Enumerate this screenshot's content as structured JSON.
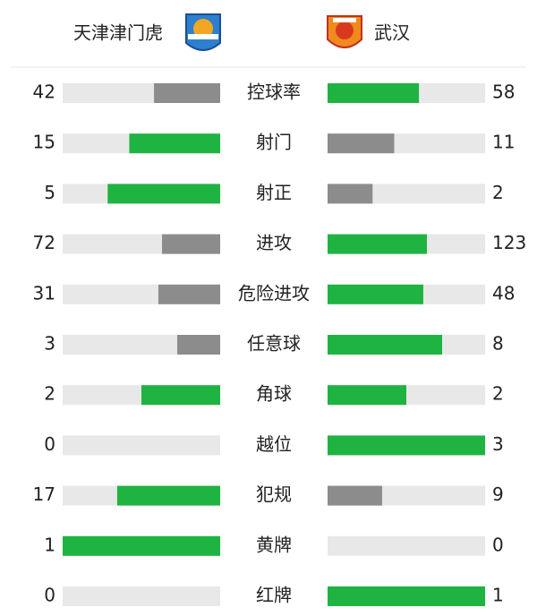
{
  "home": {
    "name": "天津津门虎"
  },
  "away": {
    "name": "武汉"
  },
  "colors": {
    "lead": "#1fb342",
    "trail": "#8c8c8c",
    "track": "#e8e8e8"
  },
  "stats": [
    {
      "label": "控球率",
      "home": 42,
      "away": 58
    },
    {
      "label": "射门",
      "home": 15,
      "away": 11
    },
    {
      "label": "射正",
      "home": 5,
      "away": 2
    },
    {
      "label": "进攻",
      "home": 72,
      "away": 123
    },
    {
      "label": "危险进攻",
      "home": 31,
      "away": 48
    },
    {
      "label": "任意球",
      "home": 3,
      "away": 8
    },
    {
      "label": "角球",
      "home": 2,
      "away": 2
    },
    {
      "label": "越位",
      "home": 0,
      "away": 3
    },
    {
      "label": "犯规",
      "home": 17,
      "away": 9
    },
    {
      "label": "黄牌",
      "home": 1,
      "away": 0
    },
    {
      "label": "红牌",
      "home": 0,
      "away": 1
    }
  ]
}
